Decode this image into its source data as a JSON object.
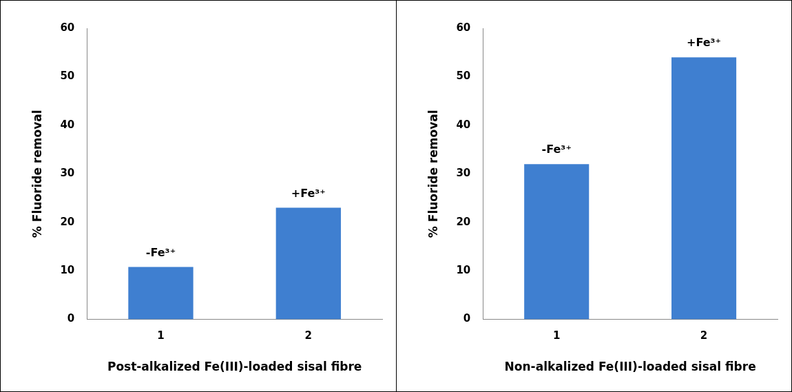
{
  "chart_data": [
    {
      "type": "bar",
      "xlabel": "Post-alkalized Fe(III)-loaded sisal fibre",
      "ylabel": "% Fluoride removal",
      "categories": [
        "1",
        "2"
      ],
      "values": [
        10.8,
        23
      ],
      "color": "#3f7fd0",
      "ylim": [
        0,
        60
      ],
      "yticks": [
        0,
        10,
        20,
        30,
        40,
        50,
        60
      ],
      "grid": false,
      "legend": false,
      "annotations": [
        {
          "text": "-Fe³⁺",
          "x": "1",
          "y": 10.8
        },
        {
          "text": "+Fe³⁺",
          "x": "2",
          "y": 23
        }
      ]
    },
    {
      "type": "bar",
      "xlabel": "Non-alkalized Fe(III)-loaded sisal fibre",
      "ylabel": "% Fluoride removal",
      "categories": [
        "1",
        "2"
      ],
      "values": [
        32,
        54
      ],
      "color": "#3f7fd0",
      "ylim": [
        0,
        60
      ],
      "yticks": [
        0,
        10,
        20,
        30,
        40,
        50,
        60
      ],
      "grid": false,
      "legend": false,
      "annotations": [
        {
          "text": "-Fe³⁺",
          "x": "1",
          "y": 32
        },
        {
          "text": "+Fe³⁺",
          "x": "2",
          "y": 54
        }
      ]
    }
  ]
}
